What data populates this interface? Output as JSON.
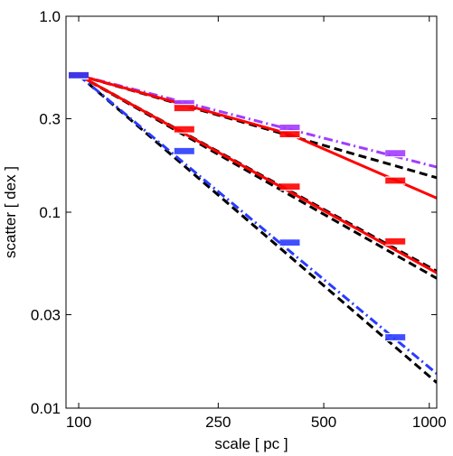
{
  "chart_data": {
    "type": "line",
    "xlabel": "scale [ pc ]",
    "ylabel": "scatter [ dex ]",
    "xscale": "log",
    "yscale": "log",
    "xlim": [
      92,
      1050
    ],
    "ylim": [
      0.01,
      1.0
    ],
    "xticks": [
      100,
      250,
      500,
      1000
    ],
    "xtick_labels": [
      "100",
      "250",
      "500",
      "1000"
    ],
    "yticks": [
      0.01,
      0.03,
      0.1,
      0.3,
      1.0
    ],
    "ytick_labels": [
      "0.01",
      "0.03",
      "0.1",
      "0.3",
      "1.0"
    ],
    "grid": false,
    "legend": "none",
    "series": [
      {
        "color": "#a23cff",
        "style": "dashdot",
        "kind": "measured",
        "x": [
          100,
          200,
          400,
          800
        ],
        "y": [
          0.5,
          0.36,
          0.27,
          0.2
        ],
        "fit_x": [
          100,
          1050
        ],
        "fit_y": [
          0.5,
          0.17
        ]
      },
      {
        "color": "#ff0000",
        "style": "solid",
        "kind": "measured",
        "x": [
          100,
          200,
          400,
          800
        ],
        "y": [
          0.5,
          0.34,
          0.25,
          0.145
        ],
        "fit_x": [
          100,
          400,
          1050
        ],
        "fit_y": [
          0.5,
          0.25,
          0.118
        ]
      },
      {
        "color": "#ff0000",
        "style": "solid",
        "kind": "measured",
        "x": [
          100,
          200,
          400,
          800
        ],
        "y": [
          0.5,
          0.265,
          0.135,
          0.071
        ],
        "fit_x": [
          100,
          1050
        ],
        "fit_y": [
          0.5,
          0.049
        ]
      },
      {
        "color": "#2a3cff",
        "style": "dashdot",
        "kind": "measured",
        "x": [
          100,
          200,
          400,
          800
        ],
        "y": [
          0.5,
          0.205,
          0.07,
          0.023
        ],
        "fit_x": [
          100,
          1050
        ],
        "fit_y": [
          0.5,
          0.015
        ]
      },
      {
        "color": "#000000",
        "style": "dashed",
        "kind": "model",
        "x": [
          100,
          1050
        ],
        "y": [
          0.5,
          0.15
        ]
      },
      {
        "color": "#000000",
        "style": "dashed",
        "kind": "model",
        "x": [
          100,
          1050
        ],
        "y": [
          0.5,
          0.046
        ]
      },
      {
        "color": "#000000",
        "style": "dashed",
        "kind": "model",
        "x": [
          100,
          1050
        ],
        "y": [
          0.5,
          0.0135
        ]
      },
      {
        "color": "#000000",
        "style": "dashed",
        "kind": "model",
        "x": [
          100,
          1050
        ],
        "y": [
          0.5,
          0.05
        ]
      }
    ]
  }
}
